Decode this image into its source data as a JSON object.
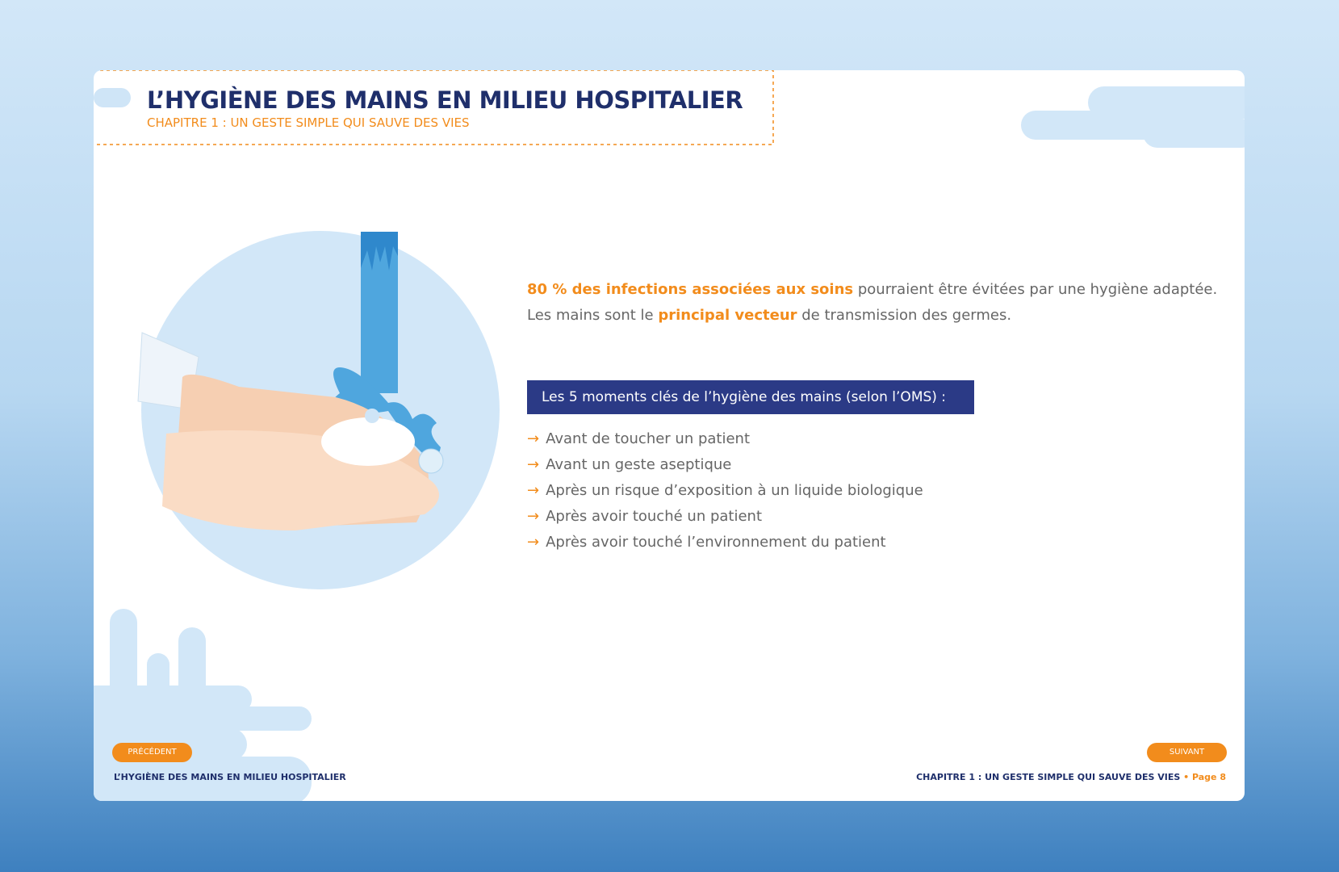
{
  "header": {
    "title": "L’HYGIÈNE DES MAINS EN MILIEU HOSPITALIER",
    "subtitle": "CHAPITRE 1 : UN GESTE SIMPLE QUI SAUVE DES VIES"
  },
  "intro": {
    "line1": [
      "80 % des infections associées aux soins",
      " pourraient être évitées par une hygiène adaptée."
    ],
    "line2": [
      "Les mains sont le ",
      "principal vecteur",
      " de transmission des germes."
    ]
  },
  "moments": {
    "title": "Les 5 moments clés de l’hygiène des mains (selon l’OMS) :",
    "items": [
      "Avant de toucher un patient",
      "Avant un geste aseptique",
      "Après un risque d’exposition à un liquide biologique",
      "Après avoir touché un patient",
      "Après avoir touché l’environnement du patient"
    ]
  },
  "footer": {
    "previous": "PRÉCÉDENT",
    "next": "SUIVANT",
    "left_text": "L’HYGIÈNE DES MAINS EN MILIEU HOSPITALIER",
    "right_text": "CHAPITRE 1 : UN GESTE SIMPLE QUI SAUVE DES VIES",
    "page": "• Page 8"
  }
}
